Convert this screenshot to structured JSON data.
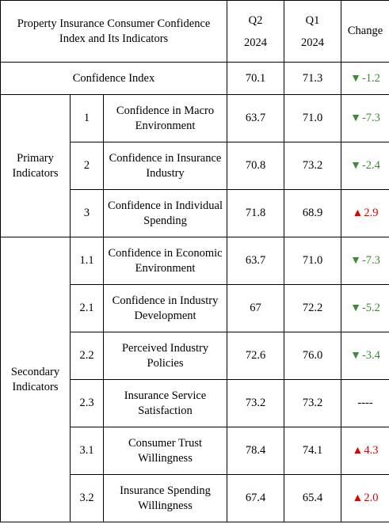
{
  "header": {
    "title": "Property Insurance Consumer Confidence Index and Its Indicators",
    "col_q2_quarter": "Q2",
    "col_q2_year": "2024",
    "col_q1_quarter": "Q1",
    "col_q1_year": "2024",
    "col_change": "Change"
  },
  "confidence_index": {
    "label": "Confidence Index",
    "q2": "70.1",
    "q1": "71.3",
    "change": "-1.2",
    "direction": "down"
  },
  "groups": {
    "primary": "Primary Indicators",
    "secondary": "Secondary Indicators"
  },
  "rows": [
    {
      "no": "1",
      "label": "Confidence in Macro Environment",
      "q2": "63.7",
      "q1": "71.0",
      "change": "-7.3",
      "direction": "down"
    },
    {
      "no": "2",
      "label": "Confidence in Insurance Industry",
      "q2": "70.8",
      "q1": "73.2",
      "change": "-2.4",
      "direction": "down"
    },
    {
      "no": "3",
      "label": "Confidence in Individual Spending",
      "q2": "71.8",
      "q1": "68.9",
      "change": "2.9",
      "direction": "up"
    },
    {
      "no": "1.1",
      "label": "Confidence in Economic Environment",
      "q2": "63.7",
      "q1": "71.0",
      "change": "-7.3",
      "direction": "down"
    },
    {
      "no": "2.1",
      "label": "Confidence in Industry Development",
      "q2": "67",
      "q1": "72.2",
      "change": "-5.2",
      "direction": "down"
    },
    {
      "no": "2.2",
      "label": "Perceived Industry Policies",
      "q2": "72.6",
      "q1": "76.0",
      "change": "-3.4",
      "direction": "down"
    },
    {
      "no": "2.3",
      "label": "Insurance Service Satisfaction",
      "q2": "73.2",
      "q1": "73.2",
      "change": "----",
      "direction": "none"
    },
    {
      "no": "3.1",
      "label": "Consumer Trust Willingness",
      "q2": "78.4",
      "q1": "74.1",
      "change": "4.3",
      "direction": "up"
    },
    {
      "no": "3.2",
      "label": "Insurance Spending Willingness",
      "q2": "67.4",
      "q1": "65.4",
      "change": "2.0",
      "direction": "up"
    }
  ],
  "colors": {
    "up": "#e10000",
    "down": "#3d8b37"
  }
}
